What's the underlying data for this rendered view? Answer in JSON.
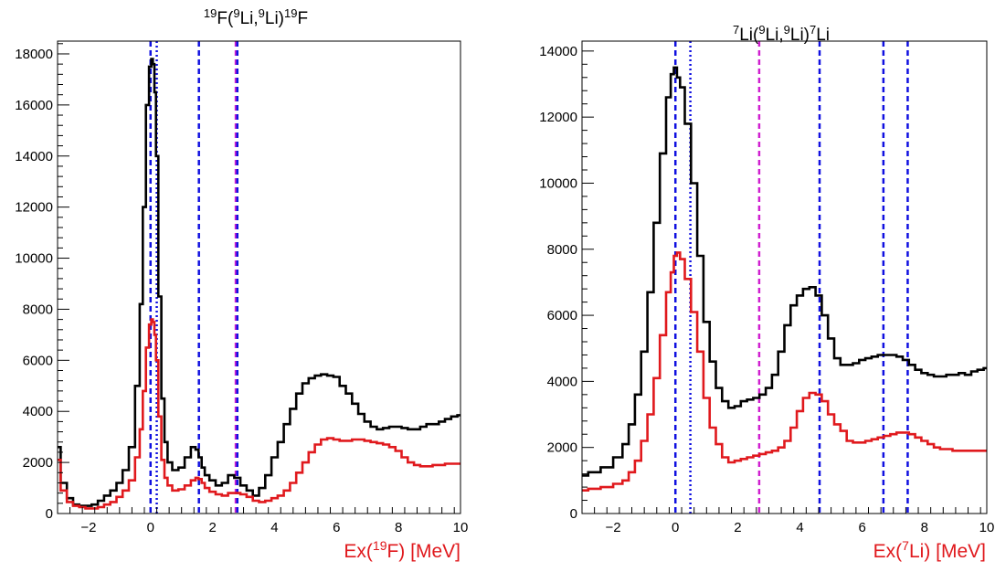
{
  "chart_data": [
    {
      "type": "line",
      "title": "19F(9Li,9Li)19F",
      "title_parts": [
        {
          "text": "19",
          "sup": true
        },
        {
          "text": "F(",
          "sup": false
        },
        {
          "text": "9",
          "sup": true
        },
        {
          "text": "Li,",
          "sup": false
        },
        {
          "text": "9",
          "sup": true
        },
        {
          "text": "Li)",
          "sup": false
        },
        {
          "text": "19",
          "sup": true
        },
        {
          "text": "F",
          "sup": false
        }
      ],
      "xlabel": "Ex(19F) [MeV]",
      "xlabel_parts": [
        {
          "text": "Ex(",
          "sup": false
        },
        {
          "text": "19",
          "sup": true
        },
        {
          "text": "F) [MeV]",
          "sup": false
        }
      ],
      "ylabel": "",
      "xlim": [
        -3,
        10
      ],
      "ylim": [
        0,
        18500
      ],
      "xticks": [
        -2,
        0,
        2,
        4,
        6,
        8,
        10
      ],
      "yticks": [
        0,
        2000,
        4000,
        6000,
        8000,
        10000,
        12000,
        14000,
        16000,
        18000
      ],
      "grid": false,
      "series": [
        {
          "color": "#000000",
          "x": [
            -3,
            -2.8,
            -2.6,
            -2.4,
            -2.2,
            -2.0,
            -1.8,
            -1.6,
            -1.4,
            -1.2,
            -1.0,
            -0.8,
            -0.6,
            -0.4,
            -0.3,
            -0.2,
            -0.1,
            0.0,
            0.05,
            0.1,
            0.15,
            0.2,
            0.3,
            0.4,
            0.5,
            0.6,
            0.8,
            1.0,
            1.2,
            1.4,
            1.5,
            1.6,
            1.7,
            1.8,
            2.0,
            2.2,
            2.4,
            2.6,
            2.8,
            3.0,
            3.2,
            3.4,
            3.6,
            3.8,
            4.0,
            4.2,
            4.4,
            4.6,
            4.8,
            5.0,
            5.2,
            5.4,
            5.6,
            5.8,
            6.0,
            6.2,
            6.4,
            6.6,
            6.8,
            7.0,
            7.2,
            7.4,
            7.6,
            7.8,
            8.0,
            8.2,
            8.4,
            8.6,
            8.8,
            9.0,
            9.2,
            9.4,
            9.6,
            9.8,
            10.0
          ],
          "values": [
            2600,
            1200,
            600,
            350,
            300,
            300,
            350,
            500,
            700,
            900,
            1200,
            1700,
            2600,
            5000,
            8200,
            12000,
            16000,
            17500,
            17800,
            17600,
            16500,
            14000,
            8500,
            4500,
            2800,
            2000,
            1700,
            1800,
            2200,
            2600,
            2500,
            2200,
            1800,
            1500,
            1300,
            1100,
            1200,
            1500,
            1400,
            1100,
            900,
            700,
            1000,
            1500,
            2200,
            2800,
            3500,
            4100,
            4700,
            5100,
            5300,
            5400,
            5450,
            5400,
            5350,
            5000,
            4700,
            4300,
            3900,
            3600,
            3400,
            3300,
            3350,
            3400,
            3400,
            3350,
            3300,
            3300,
            3400,
            3500,
            3500,
            3600,
            3700,
            3800,
            3850
          ]
        },
        {
          "color": "#e0191d",
          "x": [
            -3,
            -2.8,
            -2.6,
            -2.4,
            -2.2,
            -2.0,
            -1.8,
            -1.6,
            -1.4,
            -1.2,
            -1.0,
            -0.8,
            -0.6,
            -0.4,
            -0.3,
            -0.2,
            -0.1,
            0.0,
            0.05,
            0.1,
            0.15,
            0.2,
            0.3,
            0.4,
            0.5,
            0.6,
            0.8,
            1.0,
            1.2,
            1.4,
            1.5,
            1.6,
            1.7,
            1.8,
            2.0,
            2.2,
            2.4,
            2.6,
            2.8,
            3.0,
            3.2,
            3.4,
            3.6,
            3.8,
            4.0,
            4.2,
            4.4,
            4.6,
            4.8,
            5.0,
            5.2,
            5.4,
            5.6,
            5.8,
            6.0,
            6.2,
            6.4,
            6.6,
            6.8,
            7.0,
            7.2,
            7.4,
            7.6,
            7.8,
            8.0,
            8.2,
            8.4,
            8.6,
            8.8,
            9.0,
            9.2,
            9.4,
            9.6,
            9.8,
            10.0
          ],
          "values": [
            2100,
            900,
            450,
            300,
            250,
            200,
            200,
            250,
            350,
            450,
            650,
            900,
            1300,
            2200,
            3300,
            4800,
            6500,
            7400,
            7600,
            7500,
            7000,
            6000,
            3800,
            2100,
            1400,
            1100,
            900,
            950,
            1100,
            1300,
            1400,
            1350,
            1200,
            1000,
            850,
            750,
            700,
            800,
            800,
            750,
            650,
            500,
            450,
            500,
            600,
            700,
            900,
            1200,
            1600,
            2000,
            2400,
            2700,
            2900,
            2950,
            2900,
            2850,
            2850,
            2900,
            2900,
            2850,
            2800,
            2750,
            2700,
            2600,
            2450,
            2200,
            2000,
            1900,
            1850,
            1850,
            1900,
            1900,
            1950,
            1950,
            1950
          ]
        }
      ],
      "vlines": [
        {
          "x": 0.0,
          "color": "#1010e0",
          "style": "dashed"
        },
        {
          "x": 0.2,
          "color": "#1010e0",
          "style": "dotted"
        },
        {
          "x": 1.56,
          "color": "#1010e0",
          "style": "dashed"
        },
        {
          "x": 2.75,
          "color": "#d020d0",
          "style": "dashed"
        },
        {
          "x": 2.8,
          "color": "#1010e0",
          "style": "dashed"
        }
      ]
    },
    {
      "type": "line",
      "title": "7Li(9Li,9Li)7Li",
      "title_parts": [
        {
          "text": "7",
          "sup": true
        },
        {
          "text": "Li(",
          "sup": false
        },
        {
          "text": "9",
          "sup": true
        },
        {
          "text": "Li,",
          "sup": false
        },
        {
          "text": "9",
          "sup": true
        },
        {
          "text": "Li)",
          "sup": false
        },
        {
          "text": "7",
          "sup": true
        },
        {
          "text": "Li",
          "sup": false
        }
      ],
      "xlabel": "Ex(7Li) [MeV]",
      "xlabel_parts": [
        {
          "text": "Ex(",
          "sup": false
        },
        {
          "text": "7",
          "sup": true
        },
        {
          "text": "Li) [MeV]",
          "sup": false
        }
      ],
      "ylabel": "",
      "xlim": [
        -3,
        10
      ],
      "ylim": [
        0,
        14300
      ],
      "xticks": [
        -2,
        0,
        2,
        4,
        6,
        8,
        10
      ],
      "yticks": [
        0,
        2000,
        4000,
        6000,
        8000,
        10000,
        12000,
        14000
      ],
      "grid": false,
      "series": [
        {
          "color": "#000000",
          "x": [
            -3,
            -2.6,
            -2.2,
            -1.8,
            -1.6,
            -1.4,
            -1.2,
            -1.0,
            -0.8,
            -0.6,
            -0.4,
            -0.2,
            -0.1,
            0.0,
            0.1,
            0.2,
            0.4,
            0.6,
            0.8,
            1.0,
            1.2,
            1.4,
            1.6,
            1.8,
            2.0,
            2.2,
            2.4,
            2.6,
            2.8,
            3.0,
            3.2,
            3.4,
            3.6,
            3.8,
            4.0,
            4.2,
            4.4,
            4.6,
            4.8,
            5.0,
            5.2,
            5.4,
            5.6,
            5.8,
            6.0,
            6.2,
            6.4,
            6.6,
            6.8,
            7.0,
            7.2,
            7.4,
            7.6,
            7.8,
            8.0,
            8.2,
            8.4,
            8.6,
            8.8,
            9.0,
            9.2,
            9.4,
            9.6,
            9.8,
            10.0
          ],
          "values": [
            1150,
            1250,
            1400,
            1700,
            2100,
            2700,
            3600,
            4900,
            6700,
            8800,
            10900,
            12600,
            13300,
            13500,
            13200,
            12900,
            11800,
            10000,
            7800,
            5800,
            4600,
            3800,
            3400,
            3200,
            3250,
            3400,
            3450,
            3500,
            3600,
            3800,
            4200,
            4900,
            5700,
            6300,
            6600,
            6800,
            6850,
            6600,
            6000,
            5300,
            4700,
            4500,
            4500,
            4550,
            4650,
            4700,
            4750,
            4800,
            4800,
            4800,
            4750,
            4650,
            4500,
            4350,
            4250,
            4200,
            4150,
            4150,
            4200,
            4200,
            4250,
            4200,
            4300,
            4350,
            4400
          ]
        },
        {
          "color": "#e0191d",
          "x": [
            -3,
            -2.6,
            -2.2,
            -1.8,
            -1.6,
            -1.4,
            -1.2,
            -1.0,
            -0.8,
            -0.6,
            -0.4,
            -0.2,
            -0.1,
            0.0,
            0.1,
            0.2,
            0.4,
            0.6,
            0.8,
            1.0,
            1.2,
            1.4,
            1.6,
            1.8,
            2.0,
            2.2,
            2.4,
            2.6,
            2.8,
            3.0,
            3.2,
            3.4,
            3.6,
            3.8,
            4.0,
            4.2,
            4.4,
            4.6,
            4.8,
            5.0,
            5.2,
            5.4,
            5.6,
            5.8,
            6.0,
            6.2,
            6.4,
            6.6,
            6.8,
            7.0,
            7.2,
            7.4,
            7.6,
            7.8,
            8.0,
            8.2,
            8.4,
            8.6,
            8.8,
            9.0,
            9.2,
            9.4,
            9.6,
            9.8,
            10.0
          ],
          "values": [
            700,
            750,
            800,
            900,
            1000,
            1250,
            1600,
            2200,
            3000,
            4100,
            5400,
            6700,
            7300,
            7800,
            7900,
            7700,
            7100,
            6100,
            4900,
            3500,
            2600,
            2100,
            1700,
            1550,
            1600,
            1650,
            1700,
            1750,
            1800,
            1850,
            1900,
            2000,
            2200,
            2600,
            3100,
            3500,
            3650,
            3600,
            3400,
            3000,
            2700,
            2500,
            2200,
            2150,
            2150,
            2200,
            2250,
            2300,
            2350,
            2400,
            2450,
            2450,
            2400,
            2300,
            2200,
            2100,
            2000,
            1950,
            1950,
            1900,
            1900,
            1900,
            1900,
            1900,
            1900
          ]
        }
      ],
      "vlines": [
        {
          "x": 0.0,
          "color": "#1010e0",
          "style": "dashed"
        },
        {
          "x": 0.48,
          "color": "#1010e0",
          "style": "dotted"
        },
        {
          "x": 2.69,
          "color": "#d020d0",
          "style": "dashed"
        },
        {
          "x": 4.63,
          "color": "#1010e0",
          "style": "dashed"
        },
        {
          "x": 6.68,
          "color": "#1010e0",
          "style": "dashed"
        },
        {
          "x": 7.46,
          "color": "#1010e0",
          "style": "dashed"
        }
      ]
    }
  ]
}
